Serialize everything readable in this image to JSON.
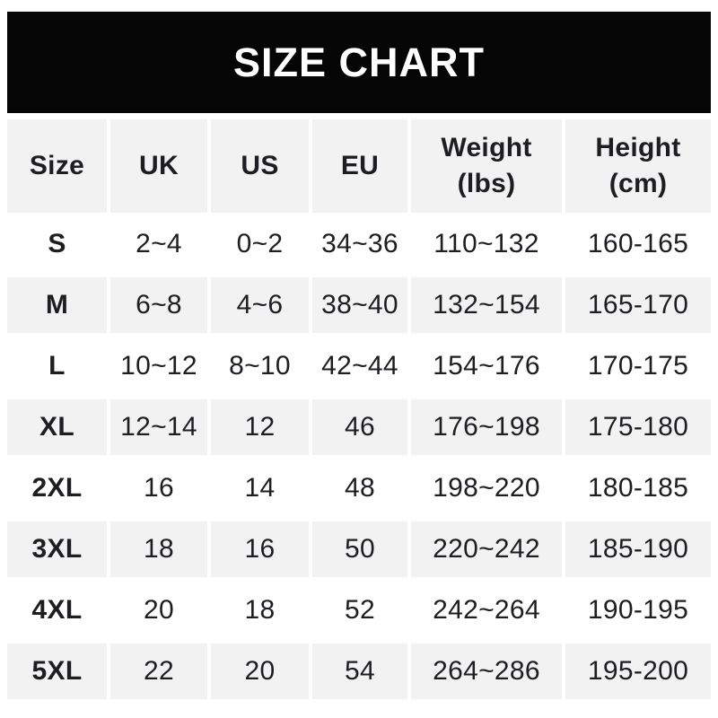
{
  "chart_data": {
    "type": "table",
    "title": "SIZE CHART",
    "columns": [
      "Size",
      "UK",
      "US",
      "EU",
      "Weight (lbs)",
      "Height (cm)"
    ],
    "rows": [
      [
        "S",
        "2~4",
        "0~2",
        "34~36",
        "110~132",
        "160-165"
      ],
      [
        "M",
        "6~8",
        "4~6",
        "38~40",
        "132~154",
        "165-170"
      ],
      [
        "L",
        "10~12",
        "8~10",
        "42~44",
        "154~176",
        "170-175"
      ],
      [
        "XL",
        "12~14",
        "12",
        "46",
        "176~198",
        "175-180"
      ],
      [
        "2XL",
        "16",
        "14",
        "48",
        "198~220",
        "180-185"
      ],
      [
        "3XL",
        "18",
        "16",
        "50",
        "220~242",
        "185-190"
      ],
      [
        "4XL",
        "20",
        "18",
        "52",
        "242~264",
        "190-195"
      ],
      [
        "5XL",
        "22",
        "20",
        "54",
        "264~286",
        "195-200"
      ]
    ]
  },
  "table": {
    "header_display": [
      "Size",
      "UK",
      "US",
      "EU",
      "Weight\n(lbs)",
      "Height\n(cm)"
    ]
  },
  "colors": {
    "banner_bg": "#050505",
    "banner_text": "#ffffff",
    "row_alt_bg": "#f2f2f2",
    "text": "#1e1e22",
    "page_bg": "#ffffff"
  }
}
